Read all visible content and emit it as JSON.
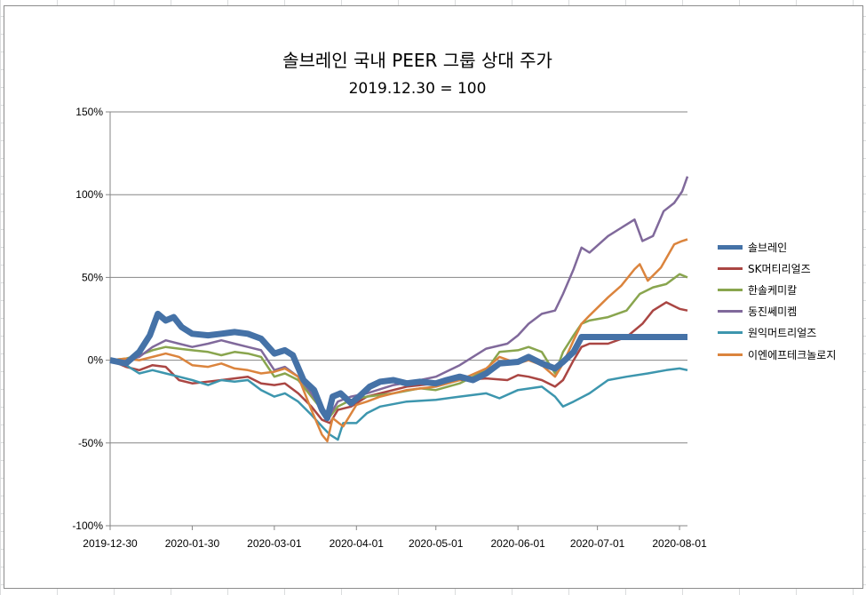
{
  "chart_data": {
    "type": "line",
    "title": "솔브레인 국내 PEER 그룹 상대 주가",
    "subtitle": "2019.12.30 = 100",
    "xlabel": "",
    "ylabel": "",
    "x_ticks": [
      "2019-12-30",
      "2020-01-30",
      "2020-03-01",
      "2020-04-01",
      "2020-05-01",
      "2020-06-01",
      "2020-07-01",
      "2020-08-01"
    ],
    "y_ticks": [
      "150%",
      "100%",
      "50%",
      "0%",
      "-50%",
      "-100%"
    ],
    "ylim": [
      -100,
      150
    ],
    "y_unit": "%",
    "legend_position": "right",
    "grid": "horizontal",
    "series": [
      {
        "name": "솔브레인",
        "color": "#4572a7",
        "width": 7,
        "points": [
          [
            "2019-12-30",
            0
          ],
          [
            "2020-01-05",
            -2
          ],
          [
            "2020-01-10",
            5
          ],
          [
            "2020-01-14",
            15
          ],
          [
            "2020-01-17",
            28
          ],
          [
            "2020-01-20",
            24
          ],
          [
            "2020-01-23",
            26
          ],
          [
            "2020-01-26",
            20
          ],
          [
            "2020-01-30",
            16
          ],
          [
            "2020-02-05",
            15
          ],
          [
            "2020-02-10",
            16
          ],
          [
            "2020-02-15",
            17
          ],
          [
            "2020-02-20",
            16
          ],
          [
            "2020-02-25",
            13
          ],
          [
            "2020-03-01",
            4
          ],
          [
            "2020-03-05",
            6
          ],
          [
            "2020-03-08",
            3
          ],
          [
            "2020-03-12",
            -12
          ],
          [
            "2020-03-16",
            -18
          ],
          [
            "2020-03-19",
            -30
          ],
          [
            "2020-03-21",
            -35
          ],
          [
            "2020-03-23",
            -22
          ],
          [
            "2020-03-26",
            -20
          ],
          [
            "2020-03-30",
            -26
          ],
          [
            "2020-04-02",
            -22
          ],
          [
            "2020-04-06",
            -16
          ],
          [
            "2020-04-10",
            -13
          ],
          [
            "2020-04-15",
            -12
          ],
          [
            "2020-04-20",
            -14
          ],
          [
            "2020-04-25",
            -13
          ],
          [
            "2020-05-01",
            -14
          ],
          [
            "2020-05-05",
            -12
          ],
          [
            "2020-05-10",
            -10
          ],
          [
            "2020-05-15",
            -12
          ],
          [
            "2020-05-20",
            -8
          ],
          [
            "2020-05-25",
            -2
          ],
          [
            "2020-06-01",
            -1
          ],
          [
            "2020-06-05",
            2
          ],
          [
            "2020-06-10",
            -2
          ],
          [
            "2020-06-15",
            -5
          ],
          [
            "2020-06-18",
            -1
          ],
          [
            "2020-06-22",
            5
          ],
          [
            "2020-06-25",
            14
          ],
          [
            "2020-06-28",
            14
          ],
          [
            "2020-07-15",
            14
          ],
          [
            "2020-08-04",
            14
          ]
        ]
      },
      {
        "name": "SK머티리얼즈",
        "color": "#aa4643",
        "width": 2.5,
        "points": [
          [
            "2019-12-30",
            0
          ],
          [
            "2020-01-05",
            -4
          ],
          [
            "2020-01-10",
            -6
          ],
          [
            "2020-01-15",
            -3
          ],
          [
            "2020-01-20",
            -4
          ],
          [
            "2020-01-25",
            -12
          ],
          [
            "2020-01-30",
            -14
          ],
          [
            "2020-02-05",
            -13
          ],
          [
            "2020-02-10",
            -12
          ],
          [
            "2020-02-15",
            -11
          ],
          [
            "2020-02-20",
            -10
          ],
          [
            "2020-02-25",
            -14
          ],
          [
            "2020-03-01",
            -15
          ],
          [
            "2020-03-05",
            -14
          ],
          [
            "2020-03-10",
            -20
          ],
          [
            "2020-03-15",
            -28
          ],
          [
            "2020-03-19",
            -36
          ],
          [
            "2020-03-22",
            -38
          ],
          [
            "2020-03-25",
            -30
          ],
          [
            "2020-03-30",
            -28
          ],
          [
            "2020-04-05",
            -22
          ],
          [
            "2020-04-10",
            -20
          ],
          [
            "2020-04-20",
            -16
          ],
          [
            "2020-05-01",
            -14
          ],
          [
            "2020-05-10",
            -12
          ],
          [
            "2020-05-20",
            -11
          ],
          [
            "2020-05-28",
            -12
          ],
          [
            "2020-06-01",
            -9
          ],
          [
            "2020-06-05",
            -10
          ],
          [
            "2020-06-10",
            -12
          ],
          [
            "2020-06-15",
            -16
          ],
          [
            "2020-06-18",
            -12
          ],
          [
            "2020-06-22",
            0
          ],
          [
            "2020-06-25",
            8
          ],
          [
            "2020-06-28",
            10
          ],
          [
            "2020-07-05",
            10
          ],
          [
            "2020-07-12",
            14
          ],
          [
            "2020-07-18",
            22
          ],
          [
            "2020-07-22",
            30
          ],
          [
            "2020-07-27",
            35
          ],
          [
            "2020-08-01",
            31
          ],
          [
            "2020-08-04",
            30
          ]
        ]
      },
      {
        "name": "한솔케미칼",
        "color": "#89a54e",
        "width": 2.5,
        "points": [
          [
            "2019-12-30",
            0
          ],
          [
            "2020-01-05",
            1
          ],
          [
            "2020-01-10",
            3
          ],
          [
            "2020-01-15",
            6
          ],
          [
            "2020-01-20",
            8
          ],
          [
            "2020-01-25",
            7
          ],
          [
            "2020-01-30",
            6
          ],
          [
            "2020-02-05",
            5
          ],
          [
            "2020-02-10",
            3
          ],
          [
            "2020-02-15",
            5
          ],
          [
            "2020-02-20",
            4
          ],
          [
            "2020-02-25",
            2
          ],
          [
            "2020-03-01",
            -10
          ],
          [
            "2020-03-05",
            -8
          ],
          [
            "2020-03-10",
            -12
          ],
          [
            "2020-03-15",
            -22
          ],
          [
            "2020-03-19",
            -30
          ],
          [
            "2020-03-22",
            -34
          ],
          [
            "2020-03-25",
            -28
          ],
          [
            "2020-03-30",
            -24
          ],
          [
            "2020-04-05",
            -22
          ],
          [
            "2020-04-15",
            -20
          ],
          [
            "2020-04-25",
            -17
          ],
          [
            "2020-05-01",
            -18
          ],
          [
            "2020-05-10",
            -14
          ],
          [
            "2020-05-20",
            -6
          ],
          [
            "2020-05-25",
            5
          ],
          [
            "2020-06-01",
            6
          ],
          [
            "2020-06-05",
            8
          ],
          [
            "2020-06-10",
            5
          ],
          [
            "2020-06-15",
            -8
          ],
          [
            "2020-06-18",
            5
          ],
          [
            "2020-06-22",
            15
          ],
          [
            "2020-06-25",
            22
          ],
          [
            "2020-06-28",
            24
          ],
          [
            "2020-07-05",
            26
          ],
          [
            "2020-07-12",
            30
          ],
          [
            "2020-07-17",
            40
          ],
          [
            "2020-07-22",
            44
          ],
          [
            "2020-07-27",
            46
          ],
          [
            "2020-08-01",
            52
          ],
          [
            "2020-08-04",
            50
          ]
        ]
      },
      {
        "name": "동진쎄미켐",
        "color": "#80699b",
        "width": 2.5,
        "points": [
          [
            "2019-12-30",
            0
          ],
          [
            "2020-01-05",
            0
          ],
          [
            "2020-01-10",
            2
          ],
          [
            "2020-01-15",
            8
          ],
          [
            "2020-01-20",
            12
          ],
          [
            "2020-01-25",
            10
          ],
          [
            "2020-01-30",
            8
          ],
          [
            "2020-02-05",
            10
          ],
          [
            "2020-02-10",
            12
          ],
          [
            "2020-02-15",
            10
          ],
          [
            "2020-02-20",
            8
          ],
          [
            "2020-02-25",
            6
          ],
          [
            "2020-03-01",
            -6
          ],
          [
            "2020-03-05",
            -4
          ],
          [
            "2020-03-10",
            -10
          ],
          [
            "2020-03-15",
            -20
          ],
          [
            "2020-03-19",
            -30
          ],
          [
            "2020-03-22",
            -33
          ],
          [
            "2020-03-25",
            -25
          ],
          [
            "2020-03-30",
            -22
          ],
          [
            "2020-04-05",
            -20
          ],
          [
            "2020-04-15",
            -15
          ],
          [
            "2020-04-25",
            -12
          ],
          [
            "2020-05-01",
            -10
          ],
          [
            "2020-05-10",
            -3
          ],
          [
            "2020-05-20",
            7
          ],
          [
            "2020-05-28",
            10
          ],
          [
            "2020-06-01",
            15
          ],
          [
            "2020-06-05",
            22
          ],
          [
            "2020-06-10",
            28
          ],
          [
            "2020-06-15",
            30
          ],
          [
            "2020-06-18",
            40
          ],
          [
            "2020-06-22",
            55
          ],
          [
            "2020-06-25",
            68
          ],
          [
            "2020-06-28",
            65
          ],
          [
            "2020-07-05",
            75
          ],
          [
            "2020-07-10",
            80
          ],
          [
            "2020-07-15",
            85
          ],
          [
            "2020-07-18",
            72
          ],
          [
            "2020-07-22",
            75
          ],
          [
            "2020-07-26",
            90
          ],
          [
            "2020-07-30",
            95
          ],
          [
            "2020-08-02",
            102
          ],
          [
            "2020-08-04",
            111
          ]
        ]
      },
      {
        "name": "원익머트리얼즈",
        "color": "#3d96ae",
        "width": 2.5,
        "points": [
          [
            "2019-12-30",
            0
          ],
          [
            "2020-01-05",
            -3
          ],
          [
            "2020-01-10",
            -8
          ],
          [
            "2020-01-15",
            -6
          ],
          [
            "2020-01-20",
            -8
          ],
          [
            "2020-01-25",
            -10
          ],
          [
            "2020-01-30",
            -12
          ],
          [
            "2020-02-05",
            -15
          ],
          [
            "2020-02-10",
            -12
          ],
          [
            "2020-02-15",
            -13
          ],
          [
            "2020-02-20",
            -12
          ],
          [
            "2020-02-25",
            -18
          ],
          [
            "2020-03-01",
            -22
          ],
          [
            "2020-03-05",
            -20
          ],
          [
            "2020-03-10",
            -25
          ],
          [
            "2020-03-15",
            -33
          ],
          [
            "2020-03-19",
            -40
          ],
          [
            "2020-03-22",
            -45
          ],
          [
            "2020-03-25",
            -48
          ],
          [
            "2020-03-27",
            -38
          ],
          [
            "2020-04-01",
            -38
          ],
          [
            "2020-04-05",
            -32
          ],
          [
            "2020-04-10",
            -28
          ],
          [
            "2020-04-20",
            -25
          ],
          [
            "2020-05-01",
            -24
          ],
          [
            "2020-05-10",
            -22
          ],
          [
            "2020-05-20",
            -20
          ],
          [
            "2020-05-25",
            -23
          ],
          [
            "2020-06-01",
            -18
          ],
          [
            "2020-06-10",
            -16
          ],
          [
            "2020-06-15",
            -22
          ],
          [
            "2020-06-18",
            -28
          ],
          [
            "2020-06-22",
            -25
          ],
          [
            "2020-06-28",
            -20
          ],
          [
            "2020-07-05",
            -12
          ],
          [
            "2020-07-12",
            -10
          ],
          [
            "2020-07-20",
            -8
          ],
          [
            "2020-07-27",
            -6
          ],
          [
            "2020-08-01",
            -5
          ],
          [
            "2020-08-04",
            -6
          ]
        ]
      },
      {
        "name": "이엔에프테크놀로지",
        "color": "#db843d",
        "width": 2.5,
        "points": [
          [
            "2019-12-30",
            0
          ],
          [
            "2020-01-05",
            1
          ],
          [
            "2020-01-10",
            0
          ],
          [
            "2020-01-15",
            2
          ],
          [
            "2020-01-20",
            4
          ],
          [
            "2020-01-25",
            2
          ],
          [
            "2020-01-30",
            -3
          ],
          [
            "2020-02-05",
            -4
          ],
          [
            "2020-02-10",
            -2
          ],
          [
            "2020-02-15",
            -5
          ],
          [
            "2020-02-20",
            -6
          ],
          [
            "2020-02-25",
            -8
          ],
          [
            "2020-03-01",
            -7
          ],
          [
            "2020-03-05",
            -5
          ],
          [
            "2020-03-10",
            -10
          ],
          [
            "2020-03-15",
            -30
          ],
          [
            "2020-03-19",
            -45
          ],
          [
            "2020-03-21",
            -49
          ],
          [
            "2020-03-23",
            -35
          ],
          [
            "2020-03-27",
            -40
          ],
          [
            "2020-04-01",
            -27
          ],
          [
            "2020-04-05",
            -25
          ],
          [
            "2020-04-10",
            -22
          ],
          [
            "2020-04-20",
            -18
          ],
          [
            "2020-05-01",
            -16
          ],
          [
            "2020-05-10",
            -12
          ],
          [
            "2020-05-20",
            -5
          ],
          [
            "2020-05-25",
            2
          ],
          [
            "2020-06-01",
            -2
          ],
          [
            "2020-06-05",
            0
          ],
          [
            "2020-06-10",
            -3
          ],
          [
            "2020-06-15",
            -10
          ],
          [
            "2020-06-18",
            -2
          ],
          [
            "2020-06-22",
            12
          ],
          [
            "2020-06-25",
            22
          ],
          [
            "2020-06-28",
            27
          ],
          [
            "2020-07-05",
            38
          ],
          [
            "2020-07-10",
            45
          ],
          [
            "2020-07-15",
            55
          ],
          [
            "2020-07-17",
            58
          ],
          [
            "2020-07-20",
            48
          ],
          [
            "2020-07-25",
            56
          ],
          [
            "2020-07-30",
            70
          ],
          [
            "2020-08-02",
            72
          ],
          [
            "2020-08-04",
            73
          ]
        ]
      }
    ]
  }
}
